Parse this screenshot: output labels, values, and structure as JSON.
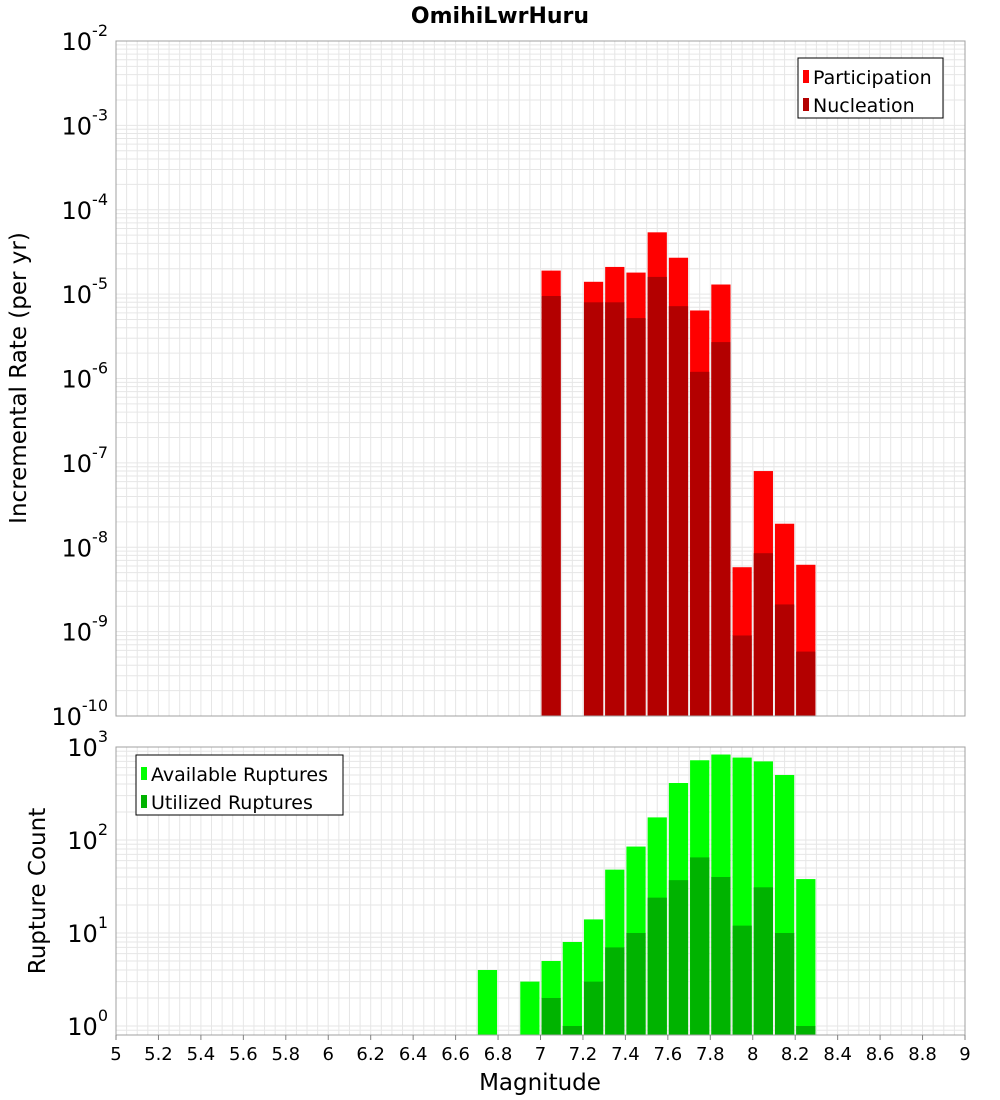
{
  "title": "OmihiLwrHuru",
  "colors": {
    "participation": "#ff0000",
    "nucleation": "#b30000",
    "available": "#00ff00",
    "utilized": "#00b300",
    "grid": "#e6e6e6",
    "frame": "#a0a0a0"
  },
  "chart_data": [
    {
      "type": "bar",
      "name": "rate-panel",
      "ylabel": "Incremental Rate (per yr)",
      "yscale": "log",
      "ylim": [
        1e-10,
        0.01
      ],
      "xlim": [
        5,
        9
      ],
      "ytick_exponents": [
        -2,
        -3,
        -4,
        -5,
        -6,
        -7,
        -8,
        -9,
        -10
      ],
      "ytick_base": "10",
      "legend": {
        "placement": "top-right",
        "entries": [
          "Participation",
          "Nucleation"
        ]
      },
      "bin_width": 0.1,
      "series": [
        {
          "name": "Participation",
          "color_key": "participation",
          "x": [
            7.05,
            7.25,
            7.35,
            7.45,
            7.55,
            7.65,
            7.75,
            7.85,
            7.95,
            8.05,
            8.15,
            8.25
          ],
          "values": [
            1.9e-05,
            1.4e-05,
            2.1e-05,
            1.8e-05,
            5.4e-05,
            2.7e-05,
            6.4e-06,
            1.3e-05,
            5.8e-09,
            8e-08,
            1.9e-08,
            6.2e-09
          ]
        },
        {
          "name": "Nucleation",
          "color_key": "nucleation",
          "x": [
            7.05,
            7.25,
            7.35,
            7.45,
            7.55,
            7.65,
            7.75,
            7.85,
            7.95,
            8.05,
            8.15,
            8.25
          ],
          "values": [
            9.5e-06,
            8e-06,
            8e-06,
            5.2e-06,
            1.6e-05,
            7.2e-06,
            1.2e-06,
            2.7e-06,
            9e-10,
            8.5e-09,
            2.1e-09,
            5.8e-10
          ]
        }
      ]
    },
    {
      "type": "bar",
      "name": "count-panel",
      "xlabel": "Magnitude",
      "ylabel": "Rupture Count",
      "yscale": "log",
      "ylim": [
        0.8,
        1000
      ],
      "xlim": [
        5,
        9
      ],
      "ytick_exponents": [
        3,
        2,
        1,
        0
      ],
      "ytick_base": "10",
      "xticks": [
        "5",
        "5.2",
        "5.4",
        "5.6",
        "5.8",
        "6",
        "6.2",
        "6.4",
        "6.6",
        "6.8",
        "7",
        "7.2",
        "7.4",
        "7.6",
        "7.8",
        "8",
        "8.2",
        "8.4",
        "8.6",
        "8.8",
        "9"
      ],
      "legend": {
        "placement": "top-left",
        "entries": [
          "Available Ruptures",
          "Utilized Ruptures"
        ]
      },
      "bin_width": 0.1,
      "series": [
        {
          "name": "Available Ruptures",
          "color_key": "available",
          "x": [
            6.75,
            6.95,
            7.05,
            7.15,
            7.25,
            7.35,
            7.45,
            7.55,
            7.65,
            7.75,
            7.85,
            7.95,
            8.05,
            8.15,
            8.25
          ],
          "values": [
            4,
            3,
            5,
            8,
            14,
            48,
            85,
            175,
            410,
            720,
            830,
            770,
            700,
            500,
            38
          ]
        },
        {
          "name": "Utilized Ruptures",
          "color_key": "utilized",
          "x": [
            7.05,
            7.15,
            7.25,
            7.35,
            7.45,
            7.55,
            7.65,
            7.75,
            7.85,
            7.95,
            8.05,
            8.15,
            8.25
          ],
          "values": [
            2,
            1,
            3,
            7,
            10,
            24,
            37,
            65,
            40,
            12,
            31,
            10,
            1
          ]
        }
      ]
    }
  ]
}
